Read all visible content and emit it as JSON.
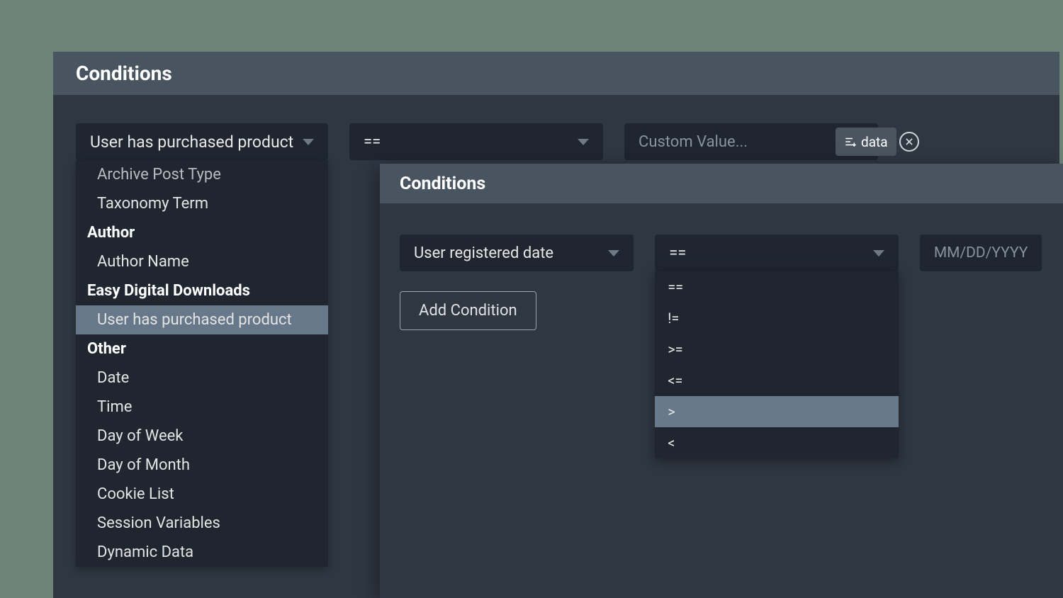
{
  "panel1": {
    "title": "Conditions",
    "field_select": {
      "value": "User has purchased product"
    },
    "operator_select": {
      "value": "=="
    },
    "value_input": {
      "placeholder": "Custom Value..."
    },
    "data_button": {
      "label": "data"
    },
    "field_options": [
      {
        "type": "item",
        "label": "Archive Post Type",
        "cut": true
      },
      {
        "type": "item",
        "label": "Taxonomy Term"
      },
      {
        "type": "group",
        "label": "Author"
      },
      {
        "type": "item",
        "label": "Author Name"
      },
      {
        "type": "group",
        "label": "Easy Digital Downloads"
      },
      {
        "type": "item",
        "label": "User has purchased product",
        "highlight": true
      },
      {
        "type": "group",
        "label": "Other"
      },
      {
        "type": "item",
        "label": "Date"
      },
      {
        "type": "item",
        "label": "Time"
      },
      {
        "type": "item",
        "label": "Day of Week"
      },
      {
        "type": "item",
        "label": "Day of Month"
      },
      {
        "type": "item",
        "label": "Cookie List"
      },
      {
        "type": "item",
        "label": "Session Variables"
      },
      {
        "type": "item",
        "label": "Dynamic Data"
      }
    ]
  },
  "panel2": {
    "title": "Conditions",
    "field_select": {
      "value": "User registered date"
    },
    "operator_select": {
      "value": "=="
    },
    "date_input": {
      "placeholder": "MM/DD/YYYY"
    },
    "add_button": {
      "label": "Add Condition"
    },
    "operator_options": [
      {
        "label": "=="
      },
      {
        "label": "!="
      },
      {
        "label": ">="
      },
      {
        "label": "<="
      },
      {
        "label": ">",
        "highlight": true
      },
      {
        "label": "<"
      }
    ]
  },
  "colors": {
    "page_bg": "#6d8377",
    "panel_bg": "#2f3741",
    "header_bg": "#485460",
    "control_bg": "#1f2630",
    "highlight": "#67788a",
    "text": "#ffffff",
    "muted": "#8a929c"
  }
}
